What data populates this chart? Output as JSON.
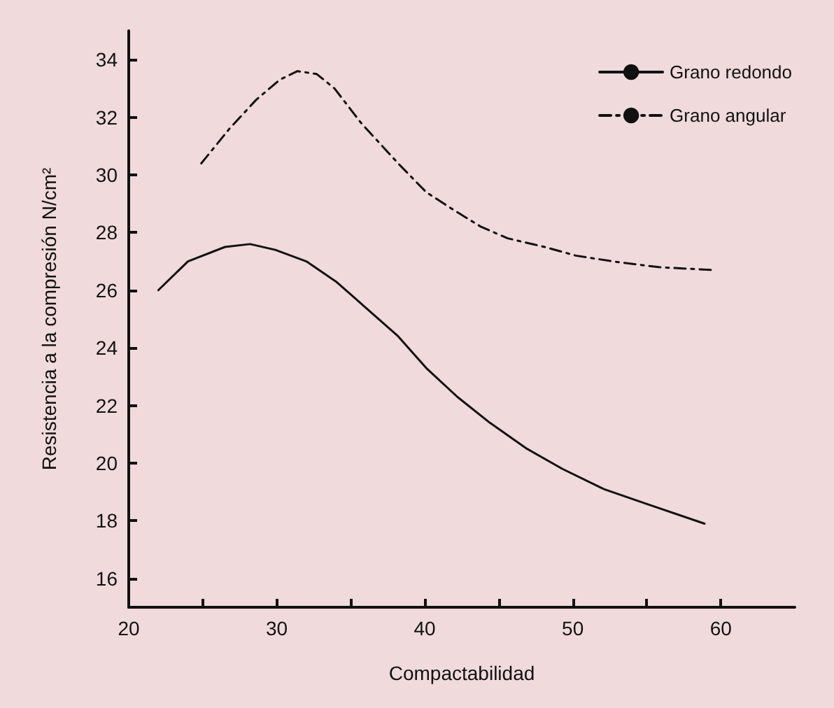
{
  "chart_data": {
    "type": "line",
    "xlabel": "Compactabilidad",
    "ylabel": "Resistencia a la compresión N/cm²",
    "xlim": [
      20,
      65
    ],
    "xticks": [
      20,
      {
        "value": 25,
        "label": null
      },
      30,
      {
        "value": 35,
        "label": null
      },
      40,
      {
        "value": 45,
        "label": null
      },
      50,
      {
        "value": 55,
        "label": null
      },
      60
    ],
    "ylim": [
      15,
      35
    ],
    "yticks": [
      16,
      18,
      20,
      22,
      24,
      26,
      28,
      30,
      32,
      34
    ],
    "grid": false,
    "legend": "top right",
    "marker": "none",
    "series": [
      {
        "name": "Grano redondo",
        "color": "#111111",
        "line_style": "solid",
        "x": [
          22.0,
          24.0,
          26.5,
          28.2,
          29.9,
          32.0,
          34.0,
          36.0,
          38.2,
          40.1,
          42.2,
          44.4,
          46.9,
          49.3,
          52.1,
          54.9,
          58.9
        ],
        "values": [
          26.0,
          27.0,
          27.5,
          27.6,
          27.4,
          27.0,
          26.3,
          25.4,
          24.4,
          23.3,
          22.3,
          21.4,
          20.5,
          19.8,
          19.1,
          18.6,
          17.9
        ]
      },
      {
        "name": "Grano angular",
        "color": "#111111",
        "line_style": "dashed",
        "x": [
          24.9,
          26.8,
          28.6,
          30.2,
          31.4,
          32.7,
          33.9,
          35.7,
          38.2,
          40.1,
          41.9,
          43.8,
          45.6,
          48.1,
          50.2,
          52.7,
          55.8,
          59.4
        ],
        "values": [
          30.4,
          31.6,
          32.6,
          33.3,
          33.6,
          33.5,
          33.0,
          31.8,
          30.4,
          29.4,
          28.8,
          28.2,
          27.8,
          27.5,
          27.2,
          27.0,
          26.8,
          26.7
        ]
      }
    ]
  }
}
